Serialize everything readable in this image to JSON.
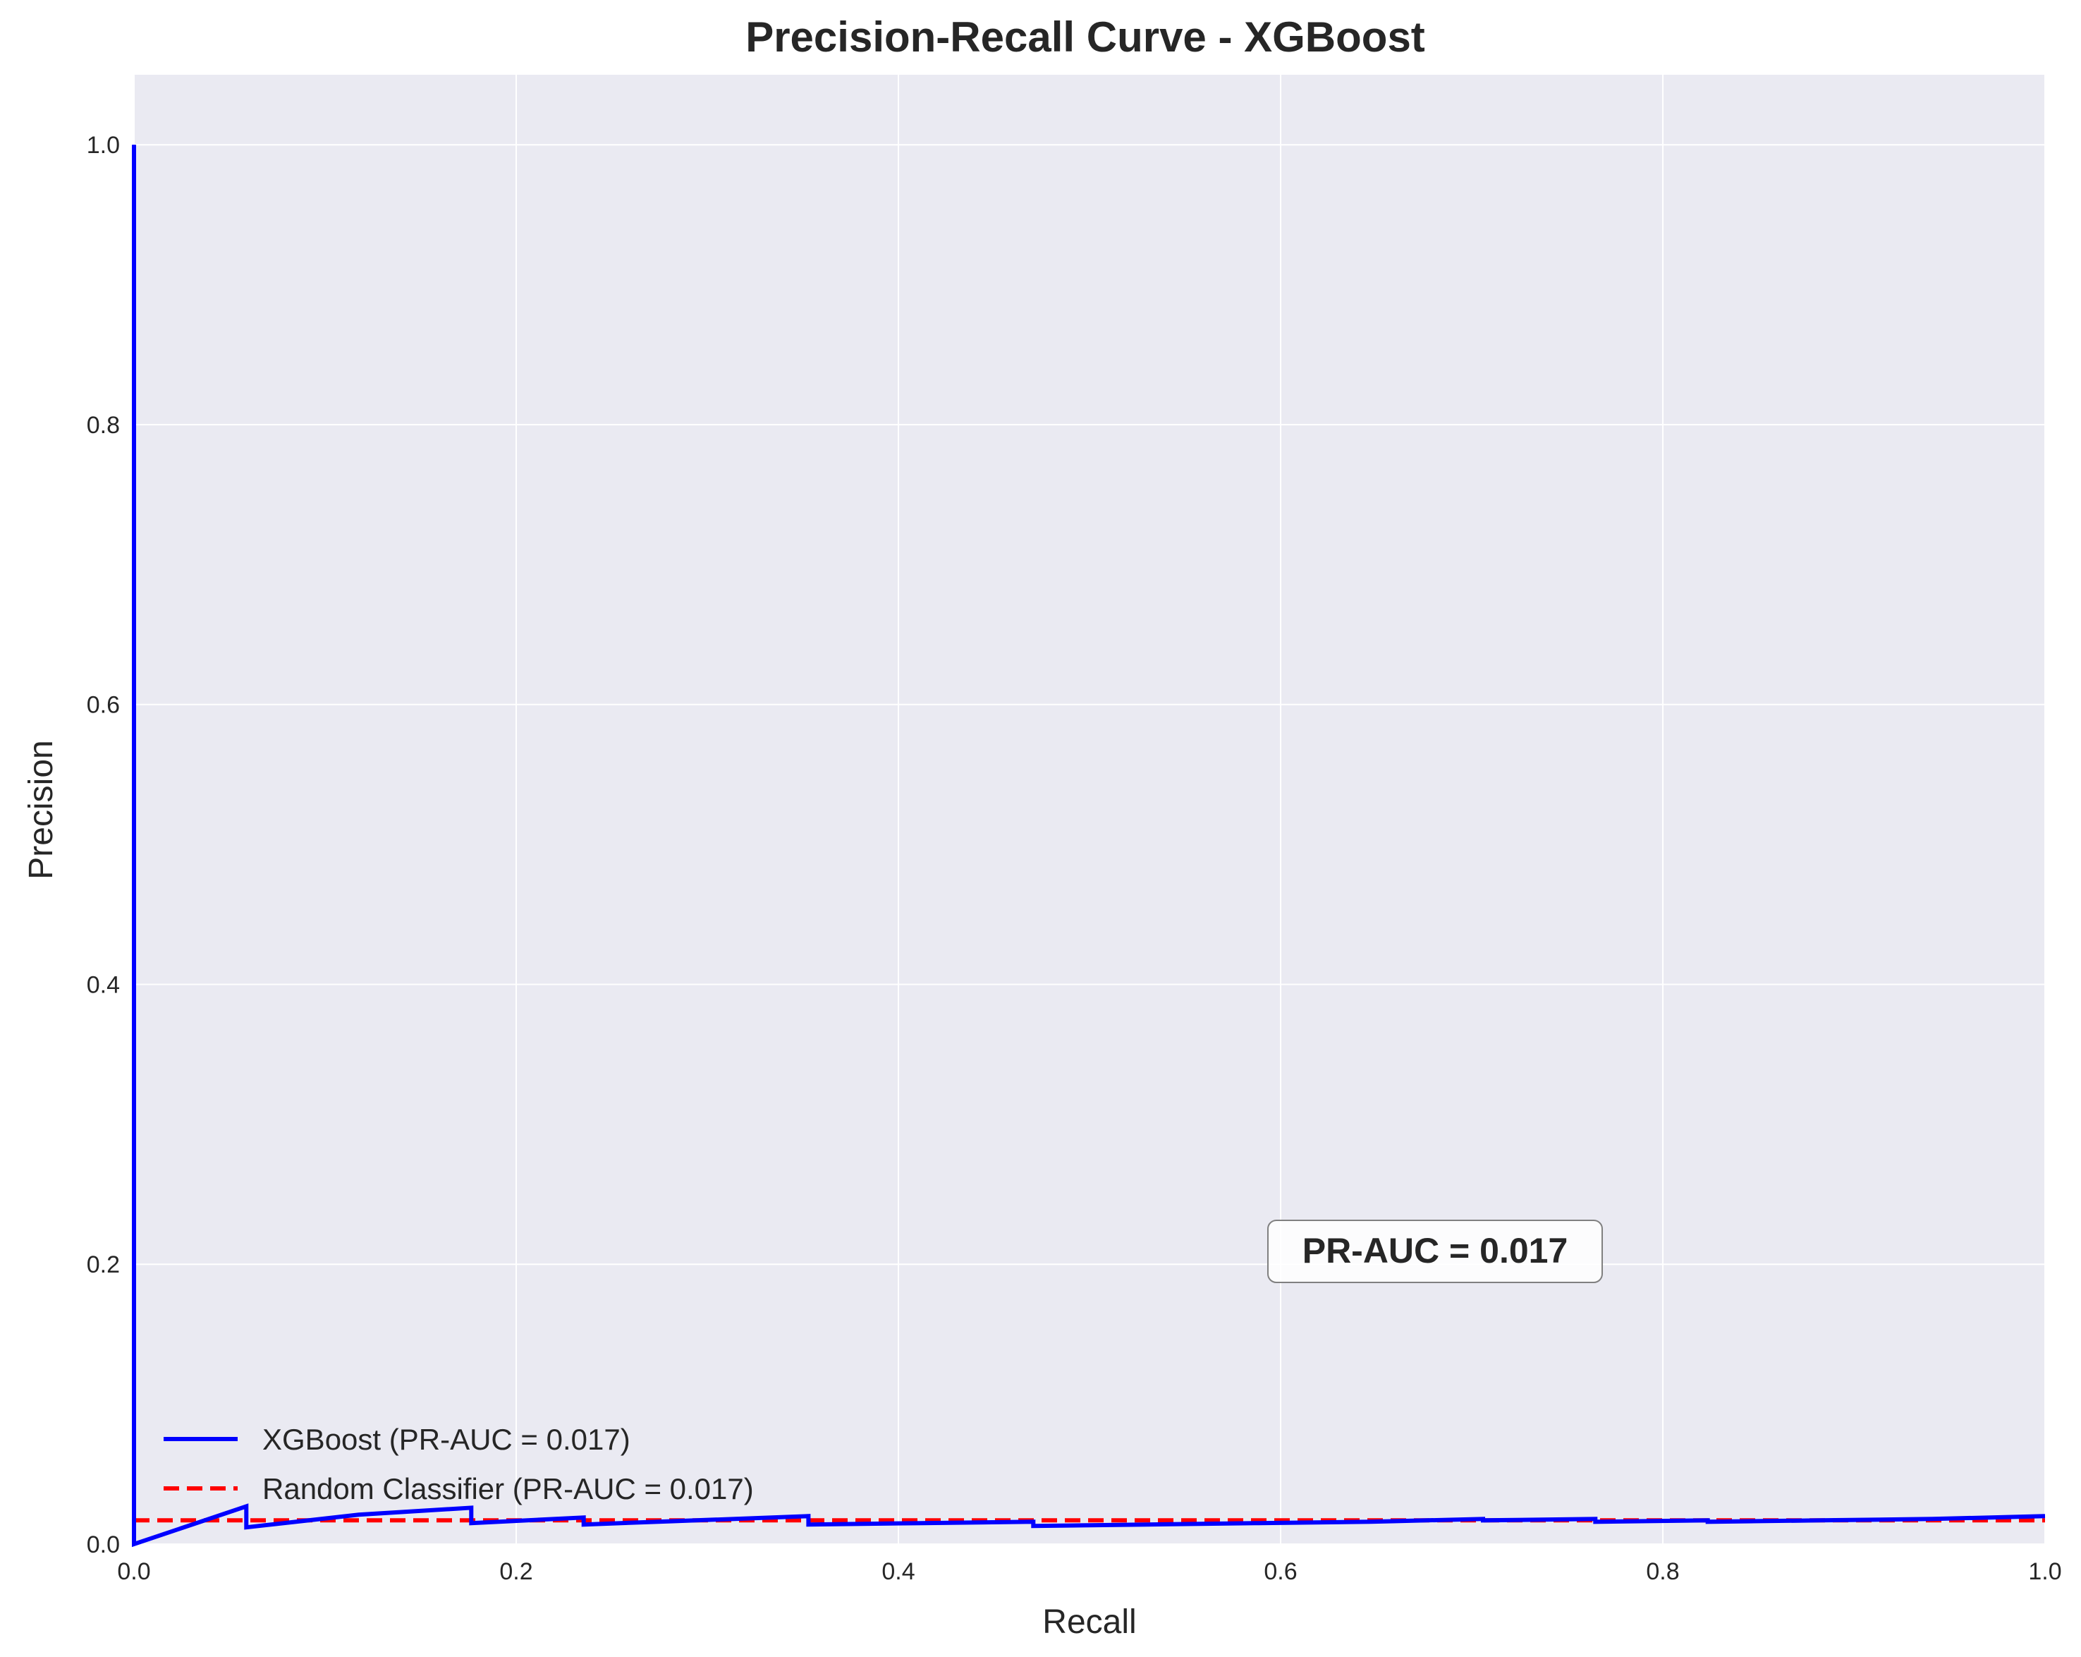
{
  "chart_data": {
    "type": "line",
    "title": "Precision-Recall Curve - XGBoost",
    "xlabel": "Recall",
    "ylabel": "Precision",
    "xlim": [
      0.0,
      1.0
    ],
    "ylim": [
      0.0,
      1.05
    ],
    "xticks": [
      0.0,
      0.2,
      0.4,
      0.6,
      0.8,
      1.0
    ],
    "xtick_labels": [
      "0.0",
      "0.2",
      "0.4",
      "0.6",
      "0.8",
      "1.0"
    ],
    "yticks": [
      0.0,
      0.2,
      0.4,
      0.6,
      0.8,
      1.0
    ],
    "ytick_labels": [
      "0.0",
      "0.2",
      "0.4",
      "0.6",
      "0.8",
      "1.0"
    ],
    "grid": true,
    "legend_position": "lower-left",
    "background_color": "#eaeaf2",
    "annotation": {
      "text": "PR-AUC = 0.017",
      "x": 0.68,
      "y": 0.2
    },
    "series": [
      {
        "name": "XGBoost (PR-AUC = 0.017)",
        "color": "#0000ff",
        "style": "solid",
        "x": [
          0.0,
          0.0,
          0.0,
          0.0588,
          0.0588,
          0.1176,
          0.1765,
          0.1765,
          0.2353,
          0.2353,
          0.2941,
          0.3529,
          0.3529,
          0.4118,
          0.4706,
          0.4706,
          0.5294,
          0.5882,
          0.6471,
          0.7059,
          0.7059,
          0.7647,
          0.7647,
          0.8235,
          0.8235,
          0.8824,
          0.9412,
          1.0
        ],
        "y": [
          1.0,
          0.0,
          0.0,
          0.027,
          0.012,
          0.021,
          0.026,
          0.015,
          0.019,
          0.014,
          0.017,
          0.02,
          0.014,
          0.015,
          0.016,
          0.013,
          0.014,
          0.015,
          0.016,
          0.018,
          0.017,
          0.018,
          0.016,
          0.017,
          0.016,
          0.017,
          0.018,
          0.02
        ]
      },
      {
        "name": "Random Classifier (PR-AUC = 0.017)",
        "color": "#ff0000",
        "style": "dashed",
        "x": [
          0.0,
          1.0
        ],
        "y": [
          0.017,
          0.017
        ]
      }
    ]
  }
}
